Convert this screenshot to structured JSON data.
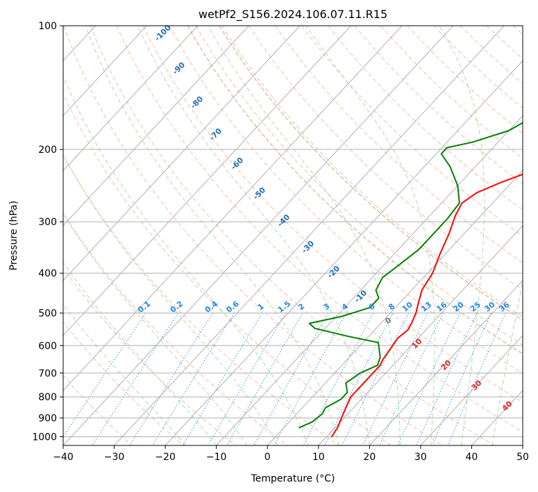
{
  "chart_data": {
    "type": "line",
    "title": "wetPf2_S156.2024.106.07.11.R15",
    "xlabel": "Temperature (°C)",
    "ylabel": "Pressure (hPa)",
    "xlim": [
      -40,
      50
    ],
    "ylim_hpa": [
      1050,
      100
    ],
    "y_scale": "log",
    "grid": true,
    "x_ticks": [
      -40,
      -30,
      -20,
      -10,
      0,
      10,
      20,
      30,
      40,
      50
    ],
    "y_ticks": [
      100,
      200,
      300,
      400,
      500,
      600,
      700,
      800,
      900,
      1000
    ],
    "series": [
      {
        "role": "temperature",
        "color": "#ff0000",
        "points": [
          [
            11,
            1000
          ],
          [
            10.5,
            950
          ],
          [
            9.5,
            900
          ],
          [
            8.5,
            850
          ],
          [
            7.5,
            800
          ],
          [
            7.5,
            750
          ],
          [
            7.5,
            700
          ],
          [
            7.5,
            670
          ],
          [
            7,
            650
          ],
          [
            6.5,
            610
          ],
          [
            6,
            575
          ],
          [
            6.5,
            550
          ],
          [
            6,
            530
          ],
          [
            5,
            500
          ],
          [
            3.5,
            470
          ],
          [
            2,
            440
          ],
          [
            1,
            400
          ],
          [
            -1,
            360
          ],
          [
            -3,
            320
          ],
          [
            -5,
            290
          ],
          [
            -6,
            270
          ],
          [
            -5,
            255
          ],
          [
            -2,
            240
          ],
          [
            2,
            225
          ],
          [
            6,
            210
          ],
          [
            9,
            198
          ],
          [
            10,
            188
          ],
          [
            10,
            175
          ],
          [
            11,
            165
          ],
          [
            14,
            155
          ],
          [
            18,
            145
          ],
          [
            20,
            135
          ],
          [
            22,
            125
          ],
          [
            25,
            112
          ],
          [
            27,
            100
          ]
        ]
      },
      {
        "role": "dewpoint",
        "color": "#008000",
        "points": [
          [
            3,
            950
          ],
          [
            4.5,
            920
          ],
          [
            5,
            880
          ],
          [
            4.5,
            850
          ],
          [
            6,
            810
          ],
          [
            6,
            780
          ],
          [
            4,
            740
          ],
          [
            5,
            700
          ],
          [
            7,
            670
          ],
          [
            6,
            640
          ],
          [
            3,
            590
          ],
          [
            -4,
            570
          ],
          [
            -12,
            545
          ],
          [
            -14,
            530
          ],
          [
            -9,
            510
          ],
          [
            -5,
            485
          ],
          [
            -5,
            460
          ],
          [
            -7,
            440
          ],
          [
            -8,
            410
          ],
          [
            -7,
            380
          ],
          [
            -6,
            350
          ],
          [
            -6,
            320
          ],
          [
            -6,
            295
          ],
          [
            -6.5,
            270
          ],
          [
            -10,
            245
          ],
          [
            -15,
            220
          ],
          [
            -19,
            205
          ],
          [
            -19,
            198
          ],
          [
            -15,
            192
          ],
          [
            -10,
            180
          ],
          [
            -8,
            168
          ],
          [
            -8,
            160
          ],
          [
            -9,
            152
          ],
          [
            -10,
            145
          ],
          [
            -9,
            138
          ],
          [
            -7,
            128
          ],
          [
            -6,
            118
          ],
          [
            -5,
            108
          ],
          [
            -3,
            100
          ]
        ]
      }
    ],
    "dry_adiabat_labels": [
      "-100",
      "-90",
      "-80",
      "-70",
      "-60",
      "-50",
      "-40",
      "-30",
      "-20",
      "-10",
      "0",
      "10",
      "20",
      "30",
      "40"
    ],
    "mixing_ratio_labels": [
      "0.1",
      "0.2",
      "0.4",
      "0.6",
      "1",
      "1.5",
      "2",
      "3",
      "4",
      "6",
      "8",
      "10",
      "13",
      "16",
      "20",
      "25",
      "30",
      "36"
    ]
  },
  "colors": {
    "temperature": "#ff0000",
    "dewpoint": "#008000",
    "isotherm": "#b0b0b0",
    "dry_adiabat": "#f4a582",
    "moist_adiabat": "#a1d99b",
    "mixing_ratio": "#1e88e5",
    "theta_label_cold": "#1f6fb4",
    "theta_label_warm": "#d62728",
    "theta_label_zero": "#808080",
    "background_curve": "#d9c7a8"
  }
}
